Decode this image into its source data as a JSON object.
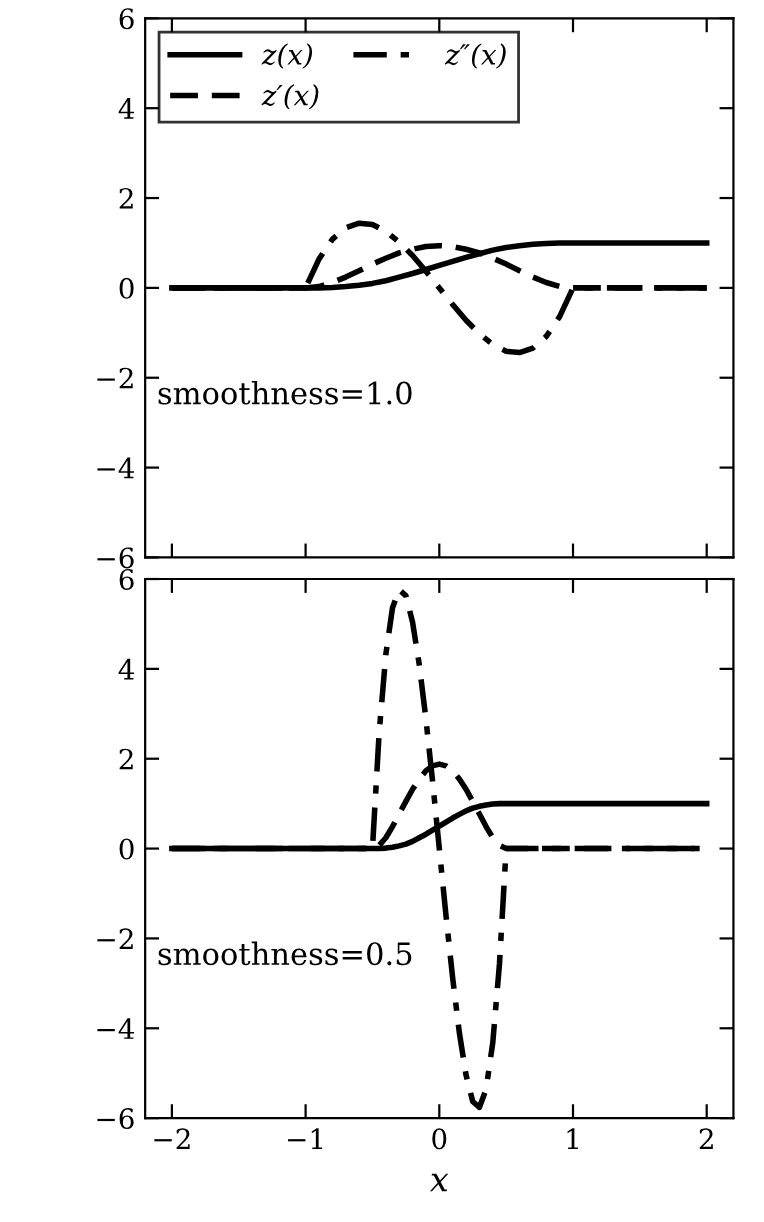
{
  "chart_data": [
    {
      "type": "line",
      "xlim": [
        -2.2,
        2.2
      ],
      "ylim": [
        -6,
        6
      ],
      "yticks": [
        {
          "value": -6,
          "label": "−6"
        },
        {
          "value": -4,
          "label": "−4"
        },
        {
          "value": -2,
          "label": "−2"
        },
        0,
        2,
        4,
        6
      ],
      "tick_labels": "y",
      "grid": false,
      "legend": "top left",
      "marker": "none",
      "annotations": [
        "smoothness=1.0"
      ],
      "series": [
        {
          "name": "z(x)",
          "color": "#000000",
          "line_style": "solid",
          "x": [
            -2,
            -1,
            -0.9,
            -0.8,
            -0.7,
            -0.6,
            -0.5,
            -0.4,
            -0.3,
            -0.2,
            -0.1,
            0,
            0.1,
            0.2,
            0.3,
            0.4,
            0.5,
            0.6,
            0.7,
            0.8,
            0.9,
            1,
            2
          ],
          "values": [
            0,
            0,
            0,
            0.01,
            0.03,
            0.06,
            0.1,
            0.16,
            0.24,
            0.32,
            0.41,
            0.5,
            0.59,
            0.68,
            0.76,
            0.84,
            0.9,
            0.94,
            0.97,
            0.99,
            1,
            1,
            1
          ]
        },
        {
          "name": "z′(x)",
          "color": "#000000",
          "line_style": "dashed",
          "x": [
            -2,
            -1,
            -0.9,
            -0.8,
            -0.7,
            -0.6,
            -0.5,
            -0.4,
            -0.3,
            -0.2,
            -0.1,
            0,
            0.1,
            0.2,
            0.3,
            0.4,
            0.5,
            0.6,
            0.7,
            0.8,
            0.9,
            1,
            2
          ],
          "values": [
            0,
            0,
            0.03,
            0.12,
            0.24,
            0.38,
            0.53,
            0.66,
            0.78,
            0.86,
            0.92,
            0.94,
            0.92,
            0.86,
            0.78,
            0.66,
            0.53,
            0.38,
            0.24,
            0.12,
            0.03,
            0,
            0
          ]
        },
        {
          "name": "z″(x)",
          "color": "#000000",
          "line_style": "dashdot",
          "x": [
            -2,
            -1,
            -0.9,
            -0.8,
            -0.7,
            -0.6,
            -0.5,
            -0.4,
            -0.3,
            -0.2,
            -0.1,
            0,
            0.1,
            0.2,
            0.3,
            0.4,
            0.5,
            0.6,
            0.7,
            0.8,
            0.9,
            1,
            2
          ],
          "values": [
            0,
            0,
            0.64,
            1.08,
            1.34,
            1.44,
            1.41,
            1.26,
            1.02,
            0.72,
            0.37,
            0,
            -0.37,
            -0.72,
            -1.02,
            -1.26,
            -1.41,
            -1.44,
            -1.34,
            -1.08,
            -0.64,
            0,
            0
          ]
        }
      ]
    },
    {
      "type": "line",
      "xlim": [
        -2.2,
        2.2
      ],
      "ylim": [
        -6,
        6
      ],
      "xticks": [
        {
          "value": -2,
          "label": "−2"
        },
        {
          "value": -1,
          "label": "−1"
        },
        0,
        1,
        2
      ],
      "yticks": [
        {
          "value": -6,
          "label": "−6"
        },
        {
          "value": -4,
          "label": "−4"
        },
        {
          "value": -2,
          "label": "−2"
        },
        0,
        2,
        4,
        6
      ],
      "xlabel": "x",
      "grid": false,
      "marker": "none",
      "annotations": [
        "smoothness=0.5"
      ],
      "series": [
        {
          "color": "#000000",
          "line_style": "solid",
          "x": [
            -2,
            -0.5,
            -0.45,
            -0.4,
            -0.35,
            -0.3,
            -0.25,
            -0.2,
            -0.15,
            -0.1,
            -0.05,
            0,
            0.05,
            0.1,
            0.15,
            0.2,
            0.25,
            0.3,
            0.35,
            0.4,
            0.45,
            0.5,
            2
          ],
          "values": [
            0,
            0,
            0,
            0.01,
            0.03,
            0.06,
            0.1,
            0.16,
            0.24,
            0.32,
            0.41,
            0.5,
            0.59,
            0.68,
            0.76,
            0.84,
            0.9,
            0.94,
            0.97,
            0.99,
            1,
            1,
            1
          ]
        },
        {
          "color": "#000000",
          "line_style": "dashed",
          "x": [
            -2,
            -0.5,
            -0.45,
            -0.4,
            -0.35,
            -0.3,
            -0.25,
            -0.2,
            -0.15,
            -0.1,
            -0.05,
            0,
            0.05,
            0.1,
            0.15,
            0.2,
            0.25,
            0.3,
            0.35,
            0.4,
            0.45,
            0.5,
            2
          ],
          "values": [
            0,
            0,
            0.07,
            0.24,
            0.49,
            0.77,
            1.05,
            1.32,
            1.55,
            1.73,
            1.84,
            1.88,
            1.84,
            1.73,
            1.55,
            1.32,
            1.05,
            0.77,
            0.49,
            0.24,
            0.07,
            0,
            0
          ]
        },
        {
          "color": "#000000",
          "line_style": "dashdot",
          "x": [
            -2,
            -0.5,
            -0.45,
            -0.4,
            -0.35,
            -0.3,
            -0.25,
            -0.2,
            -0.15,
            -0.1,
            -0.05,
            0,
            0.05,
            0.1,
            0.15,
            0.2,
            0.25,
            0.3,
            0.35,
            0.4,
            0.45,
            0.5,
            2
          ],
          "values": [
            0,
            0,
            2.57,
            4.32,
            5.36,
            5.76,
            5.63,
            5.04,
            4.1,
            2.88,
            1.49,
            0,
            -1.49,
            -2.88,
            -4.1,
            -5.04,
            -5.63,
            -5.76,
            -5.36,
            -4.32,
            -2.57,
            0,
            0
          ]
        }
      ]
    }
  ]
}
